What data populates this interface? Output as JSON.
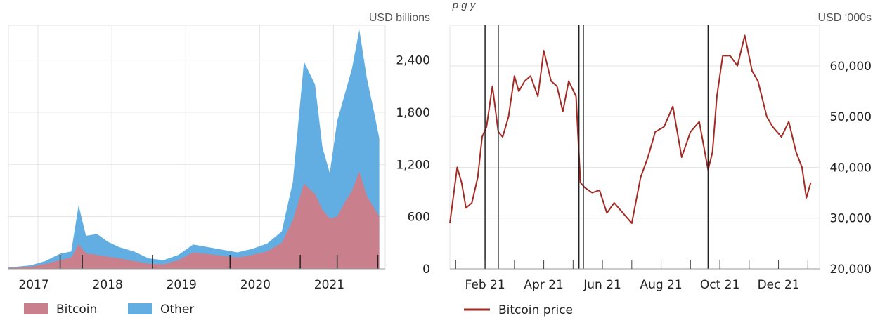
{
  "header": {
    "partial_title": "p        g        y"
  },
  "charts": [
    {
      "unit": "USD billions",
      "legend": [
        {
          "label": "Bitcoin",
          "color": "#c97f8c"
        },
        {
          "label": "Other",
          "color": "#62aee3"
        }
      ]
    },
    {
      "unit": "USD ‘000s",
      "legend": [
        {
          "label": "Bitcoin price",
          "color": "#a32b25"
        }
      ]
    }
  ],
  "chart_data": [
    {
      "type": "area",
      "stacked": true,
      "y_axis_position": "right",
      "ylim": [
        0,
        2800
      ],
      "yticks": [
        0,
        600,
        1200,
        1800,
        2400
      ],
      "ytick_labels": [
        "0",
        "600",
        "1,200",
        "1,800",
        "2,400"
      ],
      "xlim": [
        2016.6,
        2021.7
      ],
      "xticks": [
        2017,
        2018,
        2019,
        2020,
        2021
      ],
      "xtick_labels": [
        "2017",
        "2018",
        "2019",
        "2020",
        "2021"
      ],
      "event_lines": [
        2017.3,
        2017.6,
        2018.55,
        2019.6,
        2020.55,
        2021.05,
        2021.6
      ],
      "grid": true,
      "legend": "bottom-left",
      "x": [
        2016.6,
        2016.9,
        2017.1,
        2017.3,
        2017.45,
        2017.55,
        2017.65,
        2017.8,
        2017.95,
        2018.1,
        2018.3,
        2018.5,
        2018.7,
        2018.9,
        2019.1,
        2019.3,
        2019.5,
        2019.7,
        2019.9,
        2020.1,
        2020.3,
        2020.45,
        2020.6,
        2020.75,
        2020.85,
        2020.95,
        2021.05,
        2021.15,
        2021.25,
        2021.35,
        2021.45,
        2021.55,
        2021.62
      ],
      "series": [
        {
          "name": "Bitcoin",
          "values": [
            10,
            25,
            55,
            100,
            130,
            280,
            180,
            160,
            140,
            120,
            90,
            60,
            50,
            100,
            190,
            170,
            150,
            130,
            160,
            200,
            300,
            560,
            980,
            860,
            680,
            580,
            600,
            760,
            900,
            1120,
            840,
            700,
            600
          ]
        },
        {
          "name": "Other",
          "values": [
            5,
            15,
            35,
            75,
            70,
            450,
            200,
            240,
            170,
            130,
            110,
            60,
            50,
            60,
            90,
            80,
            70,
            60,
            70,
            90,
            130,
            440,
            1400,
            1260,
            720,
            520,
            1100,
            1240,
            1400,
            1630,
            1360,
            1100,
            900
          ]
        }
      ]
    },
    {
      "type": "line",
      "y_axis_position": "right",
      "ylim": [
        20000,
        68000
      ],
      "yticks": [
        20000,
        30000,
        40000,
        50000,
        60000
      ],
      "ytick_labels": [
        "20,000",
        "30,000",
        "40,000",
        "50,000",
        "60,000"
      ],
      "xlim": [
        0,
        12.6
      ],
      "xticks": [
        1.2,
        3.2,
        5.2,
        7.2,
        9.2,
        11.2
      ],
      "xtick_labels": [
        "Feb 21",
        "Apr 21",
        "Jun 21",
        "Aug 21",
        "Oct 21",
        "Dec 21"
      ],
      "event_lines": [
        1.2,
        1.65,
        4.4,
        4.55,
        8.8
      ],
      "grid": true,
      "legend": "bottom-left",
      "series": [
        {
          "name": "Bitcoin price",
          "x": [
            0,
            0.25,
            0.4,
            0.55,
            0.75,
            0.95,
            1.1,
            1.25,
            1.45,
            1.65,
            1.8,
            2.0,
            2.2,
            2.35,
            2.55,
            2.75,
            3.0,
            3.2,
            3.45,
            3.65,
            3.85,
            4.05,
            4.3,
            4.45,
            4.6,
            4.85,
            5.1,
            5.35,
            5.6,
            5.9,
            6.2,
            6.5,
            6.75,
            7.0,
            7.3,
            7.6,
            7.9,
            8.2,
            8.5,
            8.8,
            8.95,
            9.1,
            9.3,
            9.55,
            9.8,
            10.05,
            10.3,
            10.5,
            10.8,
            11.0,
            11.3,
            11.55,
            11.8,
            12.0,
            12.15,
            12.3
          ],
          "y": [
            29000,
            40000,
            37000,
            32000,
            33000,
            38000,
            46000,
            48000,
            56000,
            47000,
            46000,
            50000,
            58000,
            55000,
            57000,
            58000,
            54000,
            63000,
            57000,
            56000,
            51000,
            57000,
            54000,
            37000,
            36000,
            35000,
            35500,
            31000,
            33000,
            31000,
            29000,
            38000,
            42000,
            47000,
            48000,
            52000,
            42000,
            47000,
            49000,
            39500,
            43000,
            54000,
            62000,
            62000,
            60000,
            66000,
            59000,
            57000,
            50000,
            48000,
            46000,
            49000,
            43000,
            40000,
            34000,
            37000
          ]
        }
      ]
    }
  ]
}
